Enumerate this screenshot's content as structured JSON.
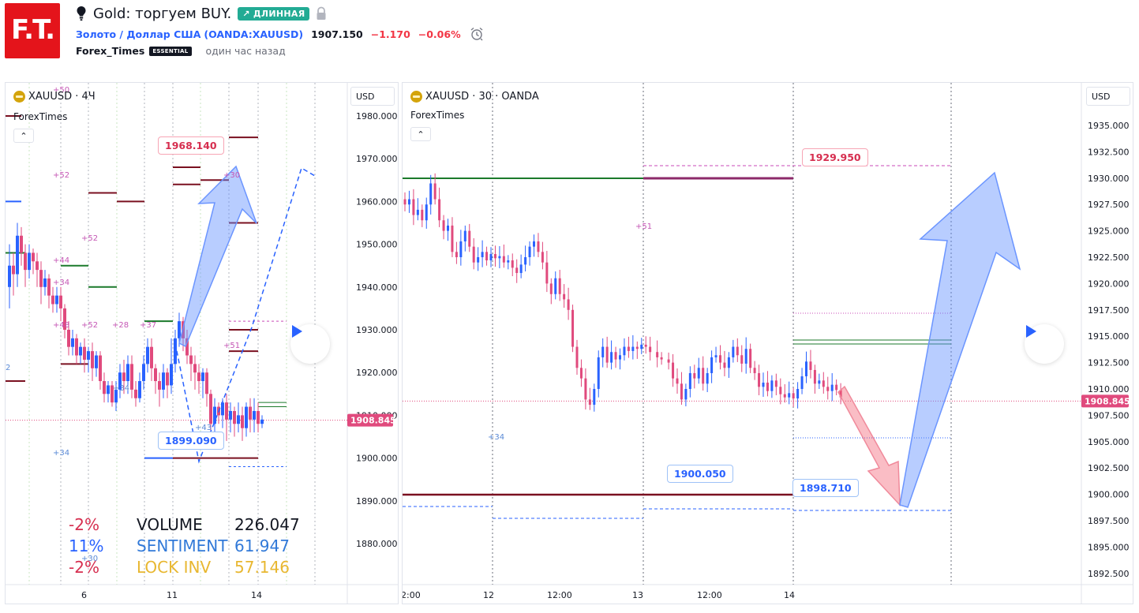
{
  "header": {
    "logo_text": "F.T.",
    "idea_title": "Gold: торгуем BUY.",
    "badge": "↗ ДЛИННАЯ",
    "symbol_link": "Золото / Доллар США",
    "symbol_ticker": "(OANDA:XAUUSD)",
    "last_price": "1907.150",
    "change": "−1.170",
    "change_pct": "−0.06%",
    "author": "Forex_Times",
    "author_badge": "ESSENTIAL",
    "published": "один час назад"
  },
  "left_chart": {
    "symbol": "XAUUSD · 4Ч",
    "author": "ForexTimes",
    "currency": "USD",
    "price_ticks": [
      "1980.000",
      "1970.000",
      "1960.000",
      "1950.000",
      "1940.000",
      "1930.000",
      "1920.000",
      "1910.000",
      "1900.000",
      "1890.000",
      "1880.000"
    ],
    "time_ticks": [
      "6",
      "11",
      "14"
    ],
    "current_price": "1908.845",
    "callout_top": "1968.140",
    "callout_bottom": "1899.090",
    "legend": {
      "volume_pct": "-2%",
      "volume_label": "VOLUME",
      "volume_value": "226.047",
      "sentiment_pct": "11%",
      "sentiment_label": "SENTIMENT",
      "sentiment_value": "61.947",
      "lock_pct": "-2%",
      "lock_label": "LOCK INV",
      "lock_value": "57.146"
    },
    "markers": [
      "+50",
      "+52",
      "+52",
      "+44",
      "+34",
      "+48",
      "+52",
      "+28",
      "+37",
      "+30",
      "+51",
      "+34",
      "+43",
      "+30",
      "+34",
      "2"
    ]
  },
  "right_chart": {
    "symbol": "XAUUSD · 30 · OANDA",
    "author": "ForexTimes",
    "currency": "USD",
    "price_ticks": [
      "1935.000",
      "1932.500",
      "1930.000",
      "1927.500",
      "1925.000",
      "1922.500",
      "1920.000",
      "1917.500",
      "1915.000",
      "1912.500",
      "1910.000",
      "1907.500",
      "1905.000",
      "1902.500",
      "1900.000",
      "1897.500",
      "1895.000",
      "1892.500"
    ],
    "time_ticks": [
      "2:00",
      "12",
      "12:00",
      "13",
      "12:00",
      "14"
    ],
    "current_price": "1908.845",
    "callout_top": "1929.950",
    "callout_mid": "1900.050",
    "callout_right": "1898.710",
    "markers": [
      "+51",
      "+34"
    ]
  },
  "colors": {
    "up": "#2962ff",
    "down": "#e04a7d",
    "green": "#1b7a2b",
    "maroon": "#7a1020",
    "accent": "#22ab94"
  }
}
